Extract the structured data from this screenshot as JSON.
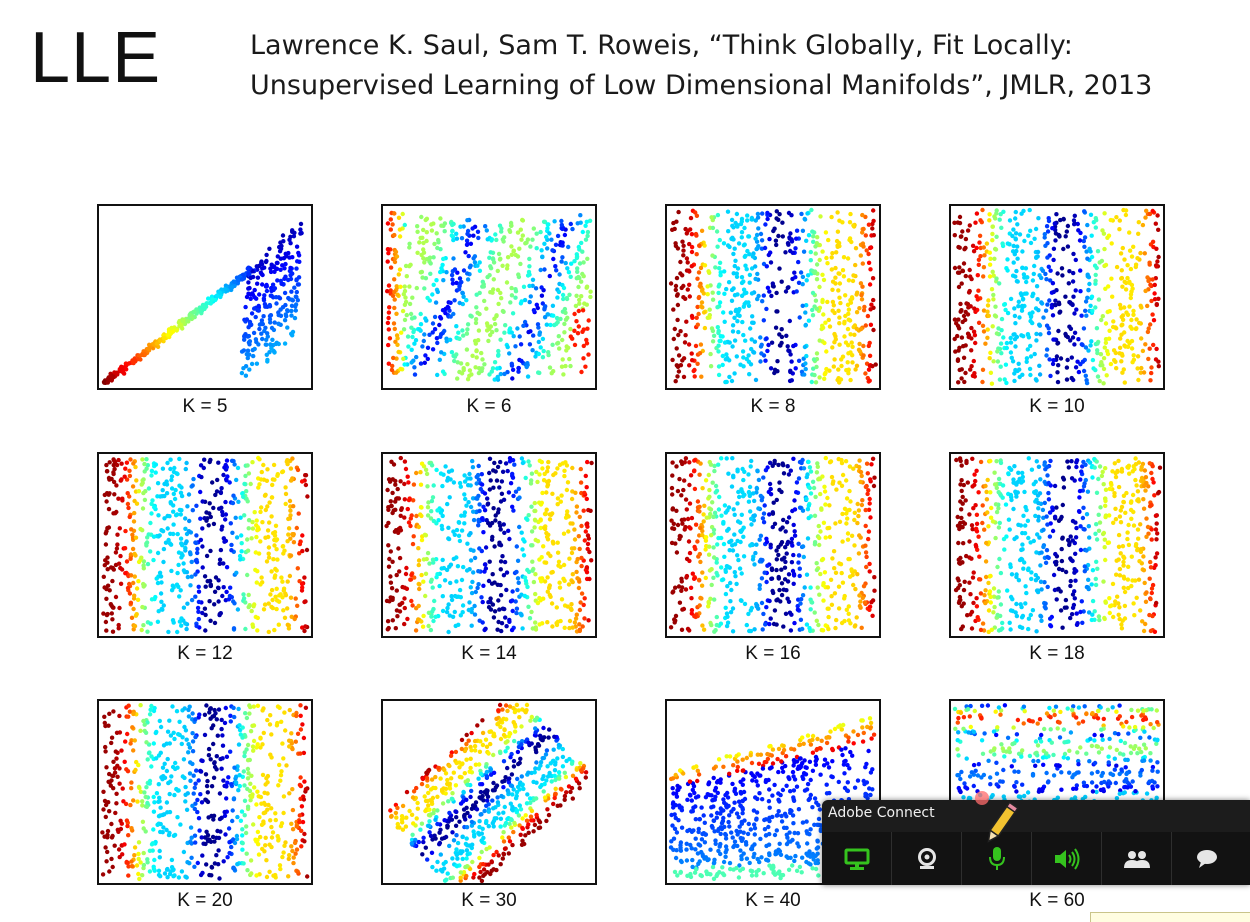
{
  "slide": {
    "title": "LLE",
    "citation_line1": "Lawrence K. Saul, Sam T. Roweis, “Think Globally, Fit Locally:",
    "citation_line2": "Unsupervised Learning of Low Dimensional Manifolds”, JMLR, 2013"
  },
  "panels": [
    {
      "label": "K = 5"
    },
    {
      "label": "K = 6"
    },
    {
      "label": "K = 8"
    },
    {
      "label": "K = 10"
    },
    {
      "label": "K = 12"
    },
    {
      "label": "K = 14"
    },
    {
      "label": "K = 16"
    },
    {
      "label": "K = 18"
    },
    {
      "label": "K = 20"
    },
    {
      "label": "K = 30"
    },
    {
      "label": "K = 40"
    },
    {
      "label": "K = 60"
    }
  ],
  "adobe_connect": {
    "title": "Adobe Connect",
    "buttons": [
      {
        "icon": "screen-share-icon",
        "color": "#35c31e"
      },
      {
        "icon": "webcam-icon",
        "color": "#e6e6e6"
      },
      {
        "icon": "microphone-icon",
        "color": "#35c31e"
      },
      {
        "icon": "speaker-icon",
        "color": "#35c31e"
      },
      {
        "icon": "attendees-icon",
        "color": "#e6e6e6"
      },
      {
        "icon": "chat-icon",
        "color": "#e6e6e6"
      }
    ]
  },
  "colors": {
    "colormap": "jet",
    "pod_background": "#1c1c1c",
    "active_green": "#35c31e"
  }
}
